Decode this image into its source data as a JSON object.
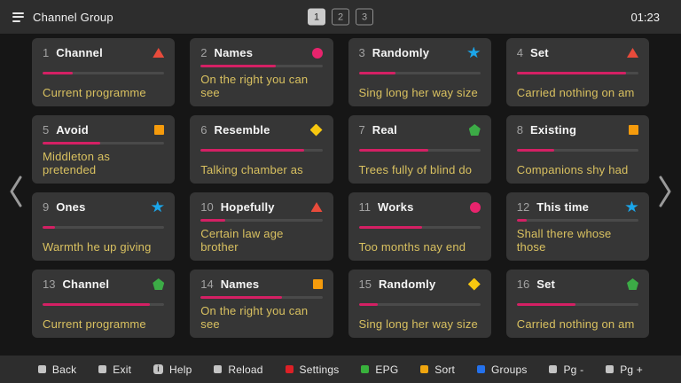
{
  "header": {
    "title": "Channel Group",
    "pages": [
      "1",
      "2",
      "3"
    ],
    "active_page": "1",
    "time": "01:23"
  },
  "cards": [
    {
      "number": "1",
      "title": "Channel",
      "subtitle": "Current programme",
      "shape": "triangle",
      "color": "#e84b3b",
      "progress": 25
    },
    {
      "number": "2",
      "title": "Names",
      "subtitle": "On the right you can see",
      "shape": "circle",
      "color": "#e8246d",
      "progress": 62
    },
    {
      "number": "3",
      "title": "Randomly",
      "subtitle": "Sing long her way size",
      "shape": "star",
      "color": "#1ba6ea",
      "progress": 30
    },
    {
      "number": "4",
      "title": "Set",
      "subtitle": "Carried nothing on am",
      "shape": "triangle",
      "color": "#e84b3b",
      "progress": 90
    },
    {
      "number": "5",
      "title": "Avoid",
      "subtitle": "Middleton as pretended",
      "shape": "square",
      "color": "#f59b0c",
      "progress": 47
    },
    {
      "number": "6",
      "title": "Resemble",
      "subtitle": "Talking chamber as",
      "shape": "diamond",
      "color": "#f7c70f",
      "progress": 85
    },
    {
      "number": "7",
      "title": "Real",
      "subtitle": "Trees fully of blind do",
      "shape": "pentagon",
      "color": "#3cab46",
      "progress": 57
    },
    {
      "number": "8",
      "title": "Existing",
      "subtitle": "Companions shy had",
      "shape": "square",
      "color": "#f59b0c",
      "progress": 31
    },
    {
      "number": "9",
      "title": "Ones",
      "subtitle": "Warmth he up giving",
      "shape": "star",
      "color": "#1ba6ea",
      "progress": 10
    },
    {
      "number": "10",
      "title": "Hopefully",
      "subtitle": "Certain law age brother",
      "shape": "triangle",
      "color": "#e84b3b",
      "progress": 20
    },
    {
      "number": "11",
      "title": "Works",
      "subtitle": "Too months nay end",
      "shape": "circle",
      "color": "#e8246d",
      "progress": 52
    },
    {
      "number": "12",
      "title": "This time",
      "subtitle": "Shall there whose those",
      "shape": "star",
      "color": "#1ba6ea",
      "progress": 8
    },
    {
      "number": "13",
      "title": "Channel",
      "subtitle": "Current programme",
      "shape": "pentagon",
      "color": "#3cab46",
      "progress": 88
    },
    {
      "number": "14",
      "title": "Names",
      "subtitle": "On the right you can see",
      "shape": "square",
      "color": "#f59b0c",
      "progress": 67
    },
    {
      "number": "15",
      "title": "Randomly",
      "subtitle": "Sing long her way size",
      "shape": "diamond",
      "color": "#f7c70f",
      "progress": 16
    },
    {
      "number": "16",
      "title": "Set",
      "subtitle": "Carried nothing on am",
      "shape": "pentagon",
      "color": "#3cab46",
      "progress": 48
    }
  ],
  "footer": [
    {
      "label": "Back",
      "type": "square",
      "color": "#c4c4c4"
    },
    {
      "label": "Exit",
      "type": "square",
      "color": "#c4c4c4"
    },
    {
      "label": "Help",
      "type": "info",
      "color": "#c4c4c4",
      "glyph": "i"
    },
    {
      "label": "Reload",
      "type": "square",
      "color": "#c4c4c4"
    },
    {
      "label": "Settings",
      "type": "square",
      "color": "#dd2026"
    },
    {
      "label": "EPG",
      "type": "square",
      "color": "#38b13c"
    },
    {
      "label": "Sort",
      "type": "square",
      "color": "#efa50f"
    },
    {
      "label": "Groups",
      "type": "square",
      "color": "#2471ec"
    },
    {
      "label": "Pg -",
      "type": "square",
      "color": "#c4c4c4"
    },
    {
      "label": "Pg +",
      "type": "square",
      "color": "#c4c4c4"
    }
  ],
  "colors": {
    "progress_fill": "#d42064",
    "progress_track": "#4a4a4a",
    "subtitle_text": "#d9c160"
  }
}
